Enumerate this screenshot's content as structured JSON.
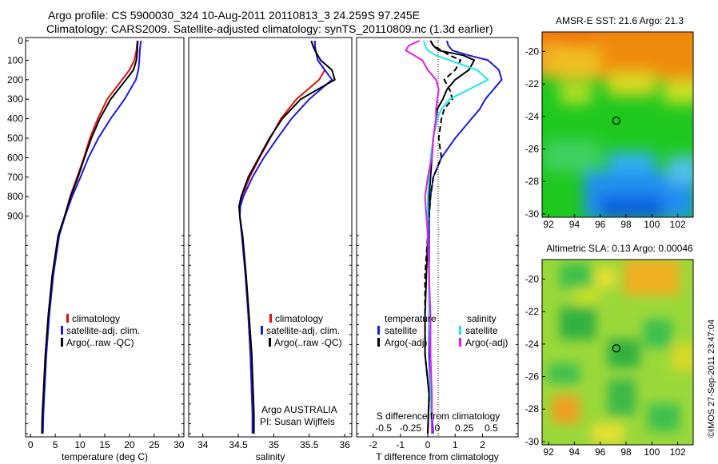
{
  "header": {
    "line1": "Argo profile: CS 5900030_324 10-Aug-2011 20110813_3 24.259S 97.245E",
    "line2": "Climatology: CARS2009. Satellite-adjusted climatology: synTS_20110809.nc (1.3d earlier)"
  },
  "side_stamp": "©IMOS 27-Sep-2011 23:47:04",
  "colors": {
    "climatology": "#e01010",
    "satellite": "#1a1ae6",
    "argo": "#000000",
    "sat_salinity": "#22e6e6",
    "argo_salinity": "#e61ae6"
  },
  "chart_data": [
    {
      "type": "line",
      "xlabel": "temperature (deg C)",
      "ylabel": "",
      "xlim": [
        -1,
        31
      ],
      "xticks": [
        "0",
        "5",
        "10",
        "15",
        "20",
        "25",
        "30"
      ],
      "yticks": [
        "0",
        "100",
        "200",
        "300",
        "400",
        "500",
        "600",
        "700",
        "800",
        "900"
      ],
      "y": [
        0,
        25,
        50,
        100,
        150,
        200,
        300,
        400,
        500,
        600,
        700,
        800,
        900,
        1000,
        1200,
        1400,
        1600,
        1800,
        1900,
        2000
      ],
      "series": [
        {
          "name": "climatology",
          "color": "#e01010",
          "values": [
            21.6,
            21.5,
            21.4,
            21.0,
            20.0,
            18.5,
            15.5,
            13.6,
            12.0,
            10.8,
            9.4,
            8.0,
            6.9,
            5.6,
            4.4,
            3.6,
            3.0,
            2.6,
            2.4,
            2.3
          ]
        },
        {
          "name": "satellite-adj. clim.",
          "color": "#1a1ae6",
          "values": [
            22.3,
            22.2,
            22.1,
            22.0,
            21.8,
            21.3,
            19.0,
            16.2,
            13.7,
            11.7,
            10.1,
            8.4,
            7.0,
            5.8,
            4.6,
            3.8,
            3.2,
            2.8,
            2.6,
            2.5
          ]
        },
        {
          "name": "Argo(..raw -QC)",
          "color": "#000000",
          "values": [
            21.7,
            21.6,
            21.6,
            21.4,
            20.8,
            19.3,
            16.2,
            14.0,
            12.3,
            10.9,
            9.6,
            8.1,
            6.9,
            5.6,
            4.4,
            3.6,
            3.0,
            2.6,
            2.4,
            2.3
          ]
        }
      ],
      "legend": [
        "climatology",
        "satellite-adj. clim.",
        "Argo(..raw -QC)"
      ],
      "legend_position": "lower-center"
    },
    {
      "type": "line",
      "xlabel": "salinity",
      "xlim": [
        33.8,
        36.1
      ],
      "xticks": [
        "34",
        "34.5",
        "35",
        "35.5",
        "36"
      ],
      "y": [
        0,
        25,
        50,
        100,
        150,
        200,
        300,
        400,
        500,
        600,
        700,
        800,
        850,
        900,
        1000,
        1200,
        1400,
        1600,
        1800,
        1900,
        2000
      ],
      "series": [
        {
          "name": "climatology",
          "color": "#e01010",
          "values": [
            35.58,
            35.58,
            35.59,
            35.62,
            35.72,
            35.64,
            35.32,
            35.1,
            34.95,
            34.8,
            34.66,
            34.55,
            34.52,
            34.52,
            34.55,
            34.6,
            34.64,
            34.67,
            34.69,
            34.7,
            34.7
          ]
        },
        {
          "name": "satellite-adj. clim.",
          "color": "#1a1ae6",
          "values": [
            35.58,
            35.58,
            35.59,
            35.62,
            35.72,
            35.82,
            35.5,
            35.25,
            35.05,
            34.86,
            34.7,
            34.57,
            34.53,
            34.52,
            34.55,
            34.6,
            34.64,
            34.67,
            34.69,
            34.7,
            34.7
          ]
        },
        {
          "name": "Argo(..raw -QC)",
          "color": "#000000",
          "values": [
            35.53,
            35.55,
            35.58,
            35.66,
            35.82,
            35.86,
            35.38,
            35.12,
            34.94,
            34.79,
            34.64,
            34.54,
            34.51,
            34.52,
            34.56,
            34.61,
            34.65,
            34.69,
            34.71,
            34.72,
            34.72
          ]
        }
      ],
      "legend": [
        "climatology",
        "satellite-adj. clim.",
        "Argo(..raw -QC)"
      ],
      "annotations": [
        "Argo AUSTRALIA",
        "PI: Susan Wijffels"
      ]
    },
    {
      "type": "line",
      "xlabel": "T difference from climatology",
      "x2label": "S difference from climatology",
      "xlim": [
        -2.6,
        3.3
      ],
      "xticks": [
        "-2",
        "-1",
        "0",
        "1",
        "2"
      ],
      "x2ticks": [
        "-0.5",
        "-0.25",
        "0",
        "0.25",
        "0.5"
      ],
      "y": [
        0,
        25,
        50,
        75,
        100,
        150,
        200,
        250,
        300,
        350,
        400,
        500,
        600,
        700,
        800,
        900,
        1000,
        1200,
        1400,
        1600,
        1800,
        2000
      ],
      "series": [
        {
          "name": "temperature satellite",
          "color": "#1a1ae6",
          "width": 2,
          "values": [
            0.7,
            0.75,
            0.9,
            1.5,
            2.2,
            2.6,
            2.7,
            2.4,
            2.1,
            1.9,
            1.6,
            1.0,
            0.5,
            0.2,
            0.1,
            0.05,
            0.05,
            0.05,
            0.05,
            0.05,
            0.1,
            0.2
          ]
        },
        {
          "name": "temperature Argo(-adj)",
          "color": "#000000",
          "width": 2,
          "values": [
            0.1,
            0.2,
            0.4,
            1.3,
            1.7,
            1.5,
            1.0,
            0.7,
            0.55,
            0.35,
            0.3,
            0.2,
            0.15,
            0.1,
            0.05,
            0.0,
            0.0,
            -0.05,
            -0.1,
            -0.1,
            0.05,
            0.0
          ]
        },
        {
          "name": "Argo(-adj) dashed",
          "color": "#000000",
          "width": 2,
          "dash": true,
          "values": [
            0.1,
            0.2,
            0.5,
            0.8,
            1.2,
            1.0,
            0.6,
            0.8,
            0.9,
            0.6,
            0.5,
            0.4,
            0.5,
            0.2,
            0.1,
            0.05,
            0.0,
            -0.1,
            -0.1,
            -0.1,
            0.05,
            0.0
          ]
        },
        {
          "name": "salinity satellite",
          "color": "#22e6e6",
          "width": 2,
          "values": [
            -0.15,
            -0.1,
            0.0,
            0.3,
            0.8,
            1.8,
            2.2,
            1.5,
            0.8,
            0.5,
            0.35,
            0.2,
            0.1,
            0.05,
            0.0,
            0.0,
            0.0,
            0.05,
            0.05,
            0.1,
            0.1,
            0.15
          ]
        },
        {
          "name": "salinity Argo(-adj)",
          "color": "#e61ae6",
          "width": 2,
          "values": [
            -0.3,
            -0.7,
            -0.8,
            -0.5,
            -0.2,
            0.0,
            0.3,
            0.4,
            0.35,
            0.3,
            0.3,
            0.2,
            0.15,
            0.0,
            -0.1,
            -0.05,
            0.0,
            0.05,
            0.1,
            0.1,
            0.15,
            0.15
          ]
        }
      ],
      "legend_headers": [
        "temperature",
        "salinity"
      ],
      "legend": [
        "satellite",
        "Argo(-adj)",
        "satellite",
        "Argo(-adj)"
      ]
    },
    {
      "type": "heatmap",
      "title": "AMSR-E SST: 21.6 Argo: 21.3",
      "xticks": [
        "92",
        "94",
        "96",
        "98",
        "100",
        "102"
      ],
      "yticks": [
        "-20",
        "-22",
        "-24",
        "-26",
        "-28",
        "-30"
      ],
      "xlim": [
        91.5,
        103.2
      ],
      "ylim": [
        -30.2,
        -18.8
      ],
      "marker": {
        "lon": 97.245,
        "lat": -24.259
      }
    },
    {
      "type": "heatmap",
      "title": "Altimetric SLA: 0.13 Argo: 0.00046",
      "xticks": [
        "92",
        "94",
        "96",
        "98",
        "100",
        "102"
      ],
      "yticks": [
        "-20",
        "-22",
        "-24",
        "-26",
        "-28",
        "-30"
      ],
      "xlim": [
        91.5,
        103.2
      ],
      "ylim": [
        -30.2,
        -18.8
      ],
      "marker": {
        "lon": 97.245,
        "lat": -24.259
      }
    }
  ]
}
